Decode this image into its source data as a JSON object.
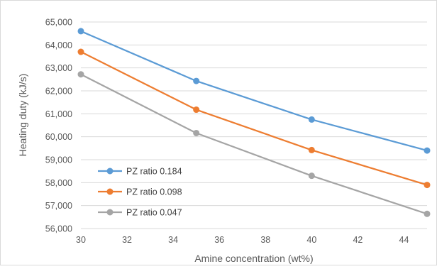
{
  "chart_data": {
    "type": "line",
    "title": "",
    "xlabel": "Amine concentration (wt%)",
    "ylabel": "Heating duty (kJ/s)",
    "x_ticks": [
      "30",
      "32",
      "34",
      "36",
      "38",
      "40",
      "42",
      "44"
    ],
    "y_ticks": [
      "56,000",
      "57,000",
      "58,000",
      "59,000",
      "60,000",
      "61,000",
      "62,000",
      "63,000",
      "64,000",
      "65,000"
    ],
    "xlim": [
      30,
      45
    ],
    "ylim": [
      56000,
      65000
    ],
    "grid": "horizontal",
    "legend_position": "lower-left",
    "x": [
      30,
      35,
      40,
      45
    ],
    "series": [
      {
        "name": "PZ ratio 0.184",
        "color": "#5b9bd5",
        "values": [
          64600,
          62430,
          60750,
          59400
        ]
      },
      {
        "name": "PZ ratio 0.098",
        "color": "#ed7d31",
        "values": [
          63700,
          61180,
          59420,
          57900
        ]
      },
      {
        "name": "PZ ratio 0.047",
        "color": "#a5a5a5",
        "values": [
          62720,
          60160,
          58300,
          56640
        ]
      }
    ]
  }
}
